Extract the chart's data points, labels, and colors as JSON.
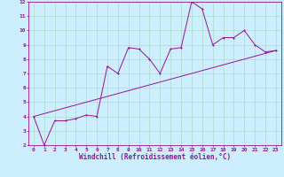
{
  "x_data": [
    0,
    1,
    2,
    3,
    4,
    5,
    6,
    7,
    8,
    9,
    10,
    11,
    12,
    13,
    14,
    15,
    16,
    17,
    18,
    19,
    20,
    21,
    22,
    23
  ],
  "y_scatter": [
    4.0,
    2.0,
    3.7,
    3.7,
    3.85,
    4.1,
    4.0,
    7.5,
    7.0,
    8.8,
    8.7,
    8.0,
    7.0,
    8.7,
    8.8,
    12.0,
    11.5,
    9.0,
    9.5,
    9.5,
    10.0,
    9.0,
    8.5,
    8.6
  ],
  "trend_x": [
    0,
    23
  ],
  "trend_y": [
    4.0,
    8.6
  ],
  "xlim": [
    -0.5,
    23.5
  ],
  "ylim": [
    2,
    12
  ],
  "xticks": [
    0,
    1,
    2,
    3,
    4,
    5,
    6,
    7,
    8,
    9,
    10,
    11,
    12,
    13,
    14,
    15,
    16,
    17,
    18,
    19,
    20,
    21,
    22,
    23
  ],
  "yticks": [
    2,
    3,
    4,
    5,
    6,
    7,
    8,
    9,
    10,
    11,
    12
  ],
  "xlabel": "Windchill (Refroidissement éolien,°C)",
  "line_color": "#991199",
  "bg_color": "#cceeff",
  "grid_color": "#aaddcc",
  "tick_fontsize": 4.5,
  "xlabel_fontsize": 5.5,
  "marker_size": 2.0,
  "lw": 0.7
}
